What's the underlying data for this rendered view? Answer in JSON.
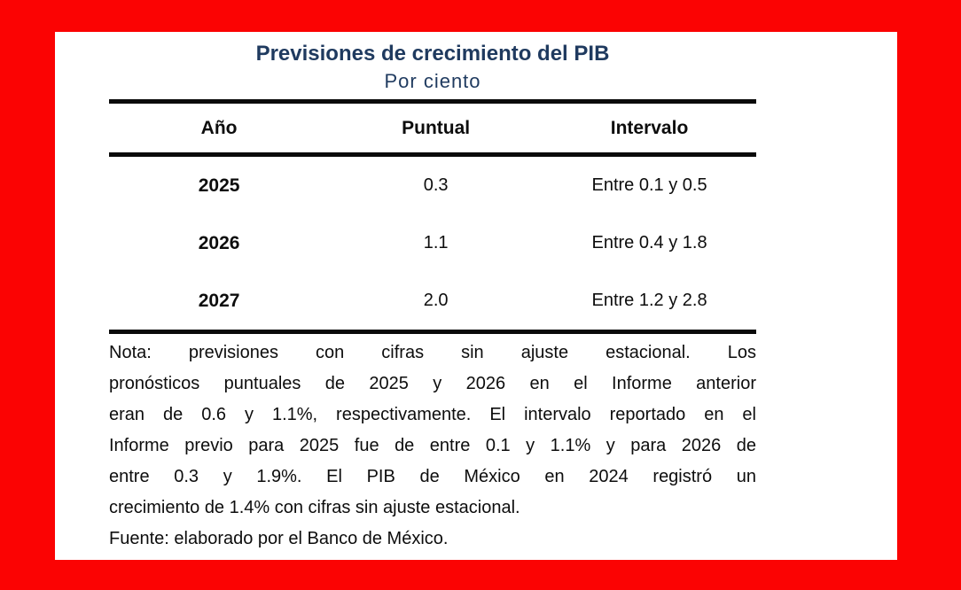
{
  "colors": {
    "frame_red": "#fb0303",
    "card_white": "#ffffff",
    "title_navy": "#1f3a5f",
    "text_black": "#0d0d0d"
  },
  "header": {
    "title": "Previsiones de crecimiento del PIB",
    "subtitle": "Por ciento"
  },
  "table": {
    "columns": [
      "Año",
      "Puntual",
      "Intervalo"
    ],
    "rows": [
      {
        "year": "2025",
        "puntual": "0.3",
        "intervalo": "Entre 0.1 y 0.5"
      },
      {
        "year": "2026",
        "puntual": "1.1",
        "intervalo": "Entre 0.4 y 1.8"
      },
      {
        "year": "2027",
        "puntual": "2.0",
        "intervalo": "Entre 1.2 y 2.8"
      }
    ]
  },
  "note": {
    "lines": [
      "Nota: previsiones con cifras sin ajuste estacional. Los",
      "pronósticos puntuales de 2025 y 2026 en el Informe anterior",
      "eran de 0.6 y 1.1%, respectivamente. El intervalo reportado en el",
      "Informe previo para 2025 fue de entre 0.1 y 1.1% y para 2026 de",
      "entre 0.3 y 1.9%. El PIB de México en 2024 registró un",
      "crecimiento de 1.4% con cifras sin ajuste estacional."
    ],
    "fuente": "Fuente: elaborado por el Banco de México."
  },
  "chart_data": {
    "type": "table",
    "title": "Previsiones de crecimiento del PIB",
    "subtitle": "Por ciento",
    "columns": [
      "Año",
      "Puntual",
      "Intervalo"
    ],
    "rows": [
      [
        "2025",
        "0.3",
        "Entre 0.1 y 0.5"
      ],
      [
        "2026",
        "1.1",
        "Entre 0.4 y 1.8"
      ],
      [
        "2027",
        "2.0",
        "Entre 1.2 y 2.8"
      ]
    ],
    "point_forecasts": {
      "2025": 0.3,
      "2026": 1.1,
      "2027": 2.0
    },
    "interval_forecasts": {
      "2025": [
        0.1,
        0.5
      ],
      "2026": [
        0.4,
        1.8
      ],
      "2027": [
        1.2,
        2.8
      ]
    },
    "note": "Nota: previsiones con cifras sin ajuste estacional. Los pronósticos puntuales de 2025 y 2026 en el Informe anterior eran de 0.6 y 1.1%, respectivamente. El intervalo reportado en el Informe previo para 2025 fue de entre 0.1 y 1.1% y para 2026 de entre 0.3 y 1.9%. El PIB de México en 2024 registró un crecimiento de 1.4% con cifras sin ajuste estacional.",
    "source": "Fuente: elaborado por el Banco de México."
  }
}
